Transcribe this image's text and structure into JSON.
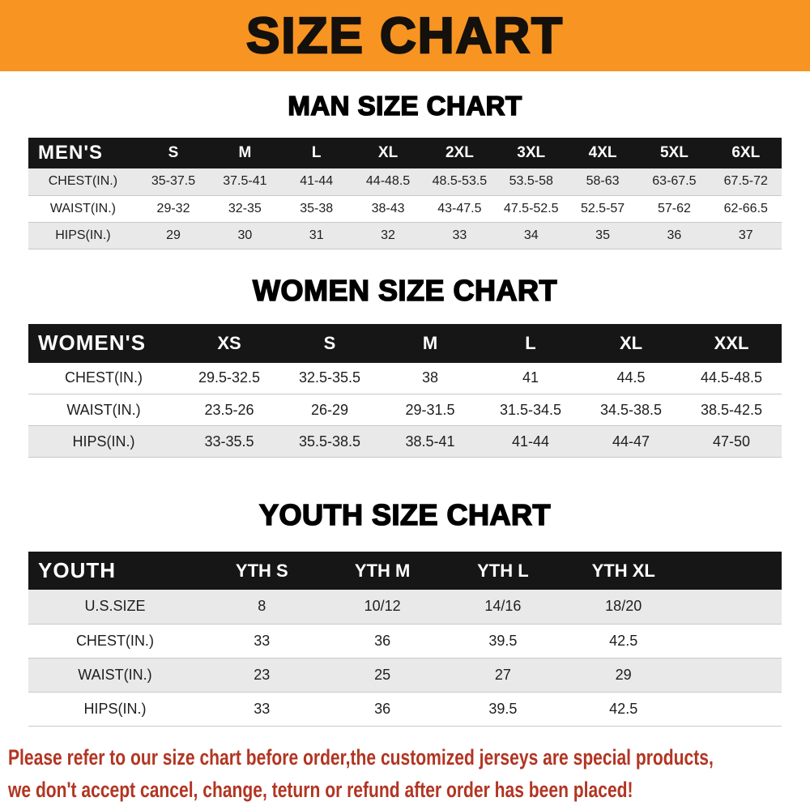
{
  "banner": {
    "title": "SIZE CHART",
    "bg_color": "#f79422",
    "text_color": "#14100c"
  },
  "sections": [
    {
      "title": "MAN SIZE CHART"
    },
    {
      "title": "WOMEN SIZE CHART"
    },
    {
      "title": "YOUTH SIZE CHART"
    }
  ],
  "tables": [
    {
      "name": "mens-size-chart",
      "header": [
        "MEN'S",
        "S",
        "M",
        "L",
        "XL",
        "2XL",
        "3XL",
        "4XL",
        "5XL",
        "6XL"
      ],
      "rows": [
        {
          "label": "CHEST(IN.)",
          "values": [
            "35-37.5",
            "37.5-41",
            "41-44",
            "44-48.5",
            "48.5-53.5",
            "53.5-58",
            "58-63",
            "63-67.5",
            "67.5-72"
          ]
        },
        {
          "label": "WAIST(IN.)",
          "values": [
            "29-32",
            "32-35",
            "35-38",
            "38-43",
            "43-47.5",
            "47.5-52.5",
            "52.5-57",
            "57-62",
            "62-66.5"
          ]
        },
        {
          "label": "HIPS(IN.)",
          "values": [
            "29",
            "30",
            "31",
            "32",
            "33",
            "34",
            "35",
            "36",
            "37"
          ]
        }
      ],
      "shaded_rows": [
        0,
        2
      ],
      "trailing_spacer": false
    },
    {
      "name": "womens-size-chart",
      "header": [
        "WOMEN'S",
        "XS",
        "S",
        "M",
        "L",
        "XL",
        "XXL"
      ],
      "rows": [
        {
          "label": "CHEST(IN.)",
          "values": [
            "29.5-32.5",
            "32.5-35.5",
            "38",
            "41",
            "44.5",
            "44.5-48.5"
          ]
        },
        {
          "label": "WAIST(IN.)",
          "values": [
            "23.5-26",
            "26-29",
            "29-31.5",
            "31.5-34.5",
            "34.5-38.5",
            "38.5-42.5"
          ]
        },
        {
          "label": "HIPS(IN.)",
          "values": [
            "33-35.5",
            "35.5-38.5",
            "38.5-41",
            "41-44",
            "44-47",
            "47-50"
          ]
        }
      ],
      "shaded_rows": [
        2
      ],
      "trailing_spacer": false
    },
    {
      "name": "youth-size-chart",
      "header": [
        "YOUTH",
        "YTH S",
        "YTH M",
        "YTH L",
        "YTH XL"
      ],
      "rows": [
        {
          "label": "U.S.SIZE",
          "values": [
            "8",
            "10/12",
            "14/16",
            "18/20"
          ]
        },
        {
          "label": "CHEST(IN.)",
          "values": [
            "33",
            "36",
            "39.5",
            "42.5"
          ]
        },
        {
          "label": "WAIST(IN.)",
          "values": [
            "23",
            "25",
            "27",
            "29"
          ]
        },
        {
          "label": "HIPS(IN.)",
          "values": [
            "33",
            "36",
            "39.5",
            "42.5"
          ]
        }
      ],
      "shaded_rows": [
        0,
        2
      ],
      "trailing_spacer": true
    }
  ],
  "footer": {
    "lines": [
      "Please refer to our size chart before order,the customized jerseys are special products,",
      "we don't accept cancel, change, teturn or refund after order has been placed!"
    ],
    "text_color": "#b23522"
  },
  "colors": {
    "table_header_bg": "#161616",
    "table_header_text": "#ffffff",
    "row_shaded_bg": "#e9e9e9",
    "row_border": "#c8c8c8"
  }
}
